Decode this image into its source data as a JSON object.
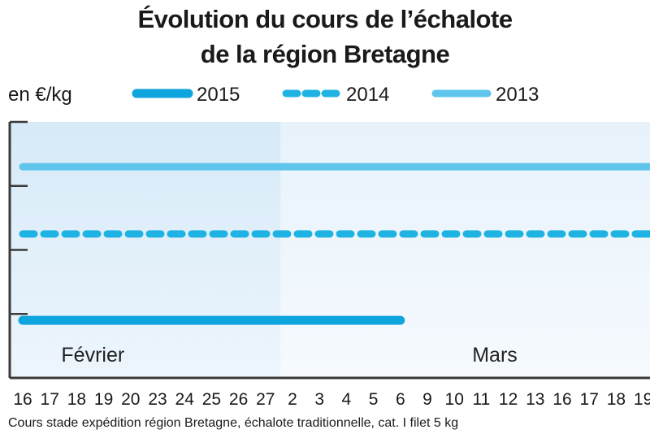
{
  "chart_data": {
    "type": "line",
    "title_line1": "Évolution du cours de l’échalote",
    "title_line2": "de la région Bretagne",
    "unit_label": "en €/kg",
    "legend": [
      {
        "label": "2015",
        "color": "#0ea5de",
        "style": "solid-thick"
      },
      {
        "label": "2014",
        "color": "#1fb3e3",
        "style": "dashed"
      },
      {
        "label": "2013",
        "color": "#5fc5ec",
        "style": "solid"
      }
    ],
    "months": [
      {
        "label": "Février",
        "start_index": 0
      },
      {
        "label": "Mars",
        "start_index": 10
      }
    ],
    "x_ticks": [
      "16",
      "17",
      "18",
      "19",
      "20",
      "23",
      "24",
      "25",
      "26",
      "27",
      "2",
      "3",
      "4",
      "5",
      "6",
      "9",
      "10",
      "11",
      "12",
      "13",
      "16",
      "17",
      "18",
      "19"
    ],
    "ylim": [
      0,
      4
    ],
    "series": [
      {
        "name": "2015",
        "color": "#0ea5de",
        "style": "solid-thick",
        "values": [
          0.9,
          0.9,
          0.9,
          0.9,
          0.9,
          0.9,
          0.9,
          0.9,
          0.9,
          0.9,
          0.9,
          0.9,
          0.9,
          0.9,
          0.9
        ]
      },
      {
        "name": "2014",
        "color": "#1fb3e3",
        "style": "dashed",
        "values": [
          2.25,
          2.25,
          2.25,
          2.25,
          2.25,
          2.25,
          2.25,
          2.25,
          2.25,
          2.25,
          2.25,
          2.25,
          2.25,
          2.25,
          2.25,
          2.25,
          2.25,
          2.25,
          2.25,
          2.25,
          2.25,
          2.25,
          2.25,
          2.25
        ]
      },
      {
        "name": "2013",
        "color": "#5fc5ec",
        "style": "solid",
        "values": [
          3.3,
          3.3,
          3.3,
          3.3,
          3.3,
          3.3,
          3.3,
          3.3,
          3.3,
          3.3,
          3.3,
          3.3,
          3.3,
          3.3,
          3.3,
          3.3,
          3.3,
          3.3,
          3.3,
          3.3,
          3.3,
          3.3,
          3.3,
          3.3
        ]
      }
    ],
    "grid": false,
    "legend_position": "top"
  },
  "footnote": "Cours stade expédition région Bretagne, échalote traditionnelle, cat. I filet 5 kg"
}
